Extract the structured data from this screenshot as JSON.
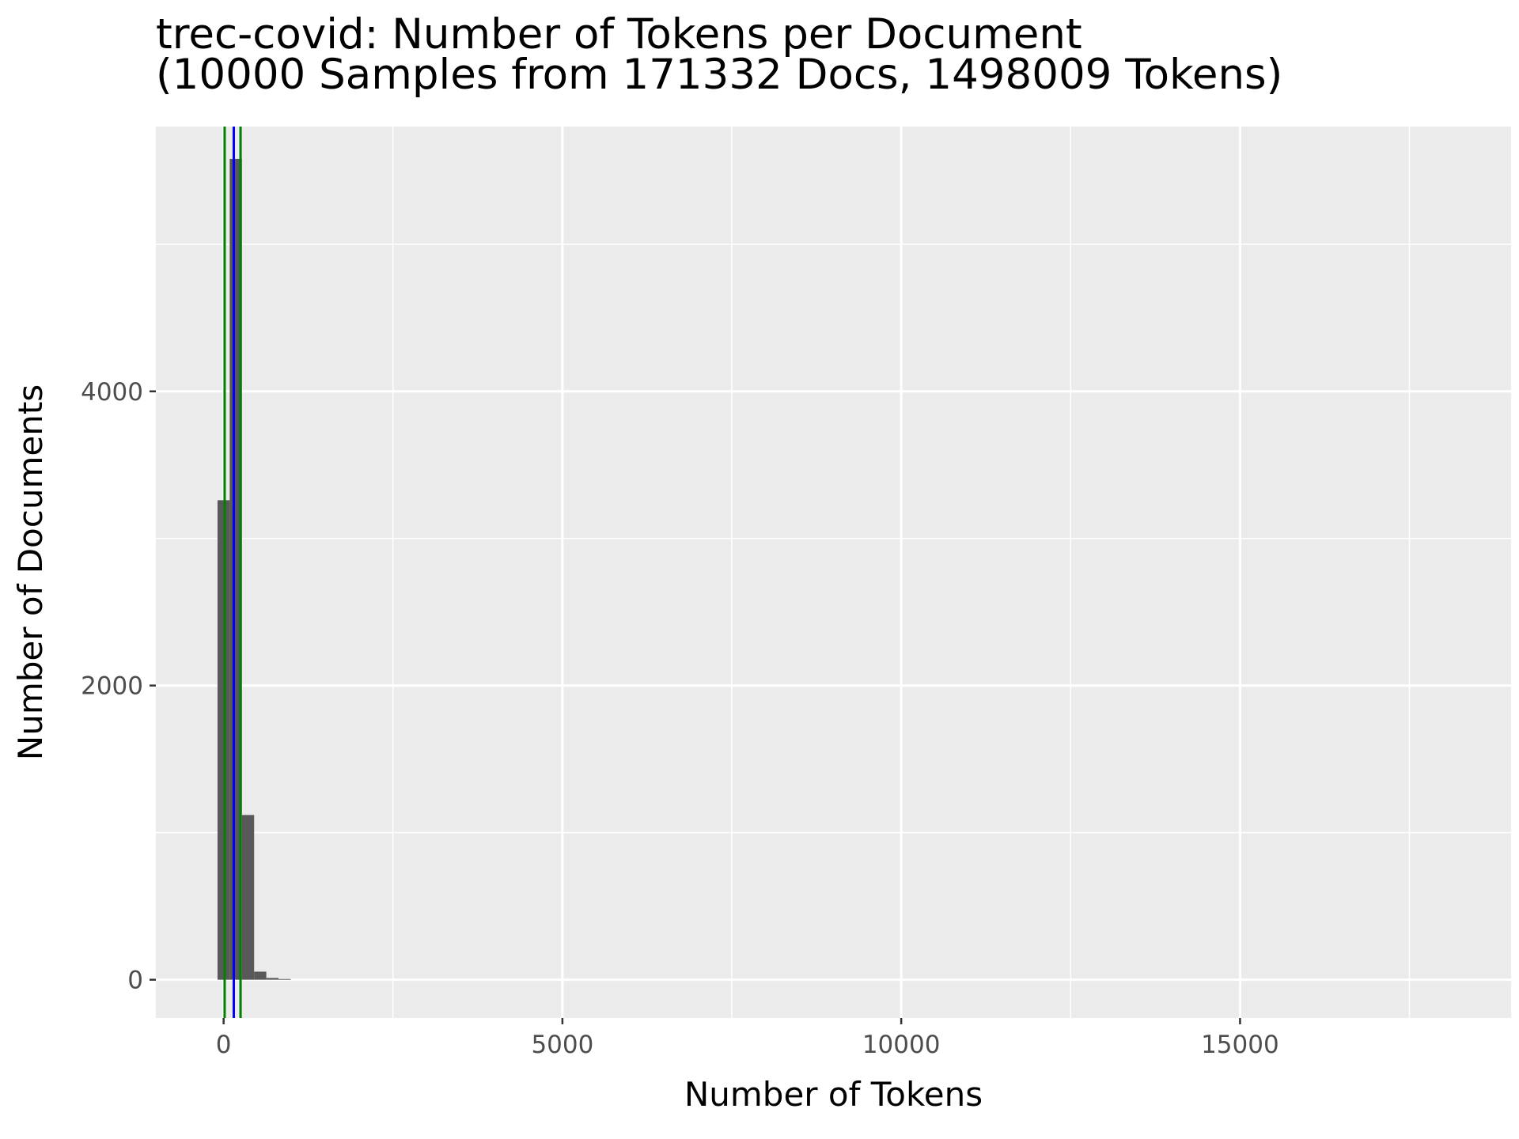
{
  "chart_data": {
    "type": "bar",
    "title_lines": [
      "trec-covid: Number of Tokens per Document",
      "(10000 Samples from 171332 Docs, 1498009 Tokens)"
    ],
    "xlabel": "Number of Tokens",
    "ylabel": "Number of Documents",
    "xlim": [
      -1000,
      19000
    ],
    "ylim": [
      -260,
      5800
    ],
    "x_ticks": [
      0,
      5000,
      10000,
      15000
    ],
    "x_tick_labels": [
      "0",
      "5000",
      "10000",
      "15000"
    ],
    "y_ticks": [
      0,
      2000,
      4000
    ],
    "y_tick_labels": [
      "0",
      "2000",
      "4000"
    ],
    "x_minor_gridlines": [
      2500,
      7500,
      12500,
      17500
    ],
    "y_minor_gridlines": [
      1000,
      3000,
      5000
    ],
    "bin_width": 180,
    "bins": [
      {
        "start": -90,
        "end": 90,
        "count": 3260
      },
      {
        "start": 90,
        "end": 270,
        "count": 5580
      },
      {
        "start": 270,
        "end": 450,
        "count": 1120
      },
      {
        "start": 450,
        "end": 630,
        "count": 55
      },
      {
        "start": 630,
        "end": 810,
        "count": 12
      },
      {
        "start": 810,
        "end": 990,
        "count": 5
      }
    ],
    "vlines": [
      {
        "x": 15,
        "color": "#008000"
      },
      {
        "x": 250,
        "color": "#008000"
      },
      {
        "x": 150,
        "color": "#0000ff"
      }
    ],
    "bar_color": "#595959",
    "panel_background": "#ebebeb",
    "grid_color": "#ffffff",
    "legend": "none"
  }
}
